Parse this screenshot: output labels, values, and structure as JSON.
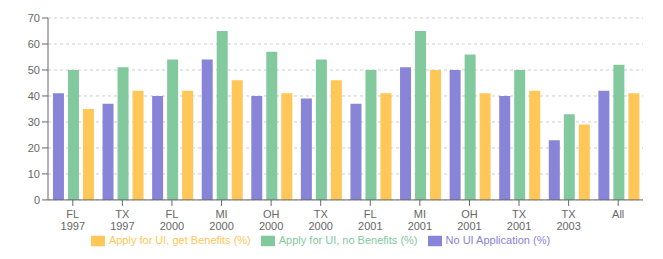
{
  "chart_data": {
    "type": "bar",
    "categories": [
      "FL\n1997",
      "TX\n1997",
      "FL\n2000",
      "MI\n2000",
      "OH\n2000",
      "TX\n2000",
      "FL\n2001",
      "MI\n2001",
      "OH\n2001",
      "TX\n2001",
      "TX\n2003",
      "All"
    ],
    "series": [
      {
        "name": "No UI Application (%)",
        "color": "#8884d8",
        "values": [
          41,
          37,
          40,
          54,
          40,
          39,
          37,
          51,
          50,
          40,
          23,
          42
        ]
      },
      {
        "name": "Apply for UI, no Benefits (%)",
        "color": "#82ca9d",
        "values": [
          50,
          51,
          54,
          65,
          57,
          54,
          50,
          65,
          56,
          50,
          33,
          52
        ]
      },
      {
        "name": "Apply for UI, get Benefits (%)",
        "color": "#ffc658",
        "values": [
          35,
          42,
          42,
          46,
          41,
          46,
          41,
          50,
          41,
          42,
          29,
          41
        ]
      }
    ],
    "ylim": [
      0,
      70
    ],
    "yticks": [
      0,
      10,
      20,
      30,
      40,
      50,
      60,
      70
    ],
    "grid": true,
    "legend": "bottom"
  }
}
